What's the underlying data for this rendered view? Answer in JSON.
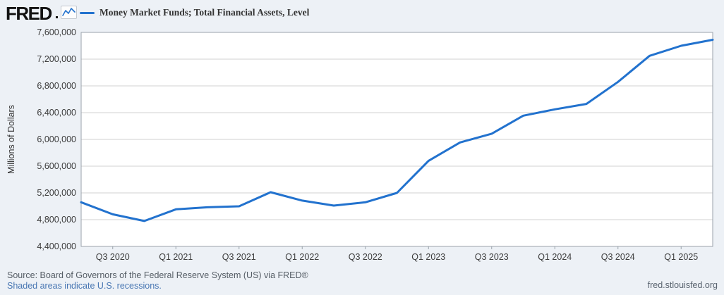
{
  "header": {
    "logo_text": "FRED",
    "logo_icon": "fred-sparkline-icon",
    "legend": {
      "series_label": "Money Market Funds; Total Financial Assets, Level"
    }
  },
  "chart_data": {
    "type": "line",
    "title": "Money Market Funds; Total Financial Assets, Level",
    "xlabel": "",
    "ylabel": "Millions of Dollars",
    "x": [
      "Q2 2020",
      "Q3 2020",
      "Q4 2020",
      "Q1 2021",
      "Q2 2021",
      "Q3 2021",
      "Q4 2021",
      "Q1 2022",
      "Q2 2022",
      "Q3 2022",
      "Q4 2022",
      "Q1 2023",
      "Q2 2023",
      "Q3 2023",
      "Q4 2023",
      "Q1 2024",
      "Q2 2024",
      "Q3 2024",
      "Q4 2024",
      "Q1 2025",
      "Q2 2025"
    ],
    "series": [
      {
        "name": "Money Market Funds; Total Financial Assets, Level",
        "values": [
          5060000,
          4880000,
          4780000,
          4955000,
          4985000,
          5000000,
          5210000,
          5085000,
          5010000,
          5060000,
          5200000,
          5680000,
          5955000,
          6085000,
          6355000,
          6450000,
          6530000,
          6860000,
          7250000,
          7400000,
          7490000
        ]
      }
    ],
    "ylim": [
      4400000,
      7600000
    ],
    "y_tick_step": 400000,
    "y_tick_labels": [
      "7,600,000",
      "7,200,000",
      "6,800,000",
      "6,400,000",
      "6,000,000",
      "5,600,000",
      "5,200,000",
      "4,800,000",
      "4,400,000"
    ],
    "x_ticks": [
      {
        "label": "Q3 2020",
        "index": 1
      },
      {
        "label": "Q1 2021",
        "index": 3
      },
      {
        "label": "Q3 2021",
        "index": 5
      },
      {
        "label": "Q1 2022",
        "index": 7
      },
      {
        "label": "Q3 2022",
        "index": 9
      },
      {
        "label": "Q1 2023",
        "index": 11
      },
      {
        "label": "Q3 2023",
        "index": 13
      },
      {
        "label": "Q1 2024",
        "index": 15
      },
      {
        "label": "Q3 2024",
        "index": 17
      },
      {
        "label": "Q1 2025",
        "index": 19
      }
    ],
    "grid": "horizontal",
    "legend_position": "top"
  },
  "footer": {
    "source_line": "Source: Board of Governors of the Federal Reserve System (US) via FRED®",
    "recession_note": "Shaded areas indicate U.S. recessions.",
    "site_url": "fred.stlouisfed.org"
  },
  "colors": {
    "background": "#edf1f6",
    "plot_background": "#ffffff",
    "gridline": "#d2d2d2",
    "plot_border": "#9aa2ab",
    "line": "#2272ce",
    "tick_label": "#3c3c3c",
    "axis_title": "#333333",
    "source_text": "#565e66",
    "link": "#4977b3",
    "url_text": "#5a6470",
    "legend_text": "#333333"
  }
}
